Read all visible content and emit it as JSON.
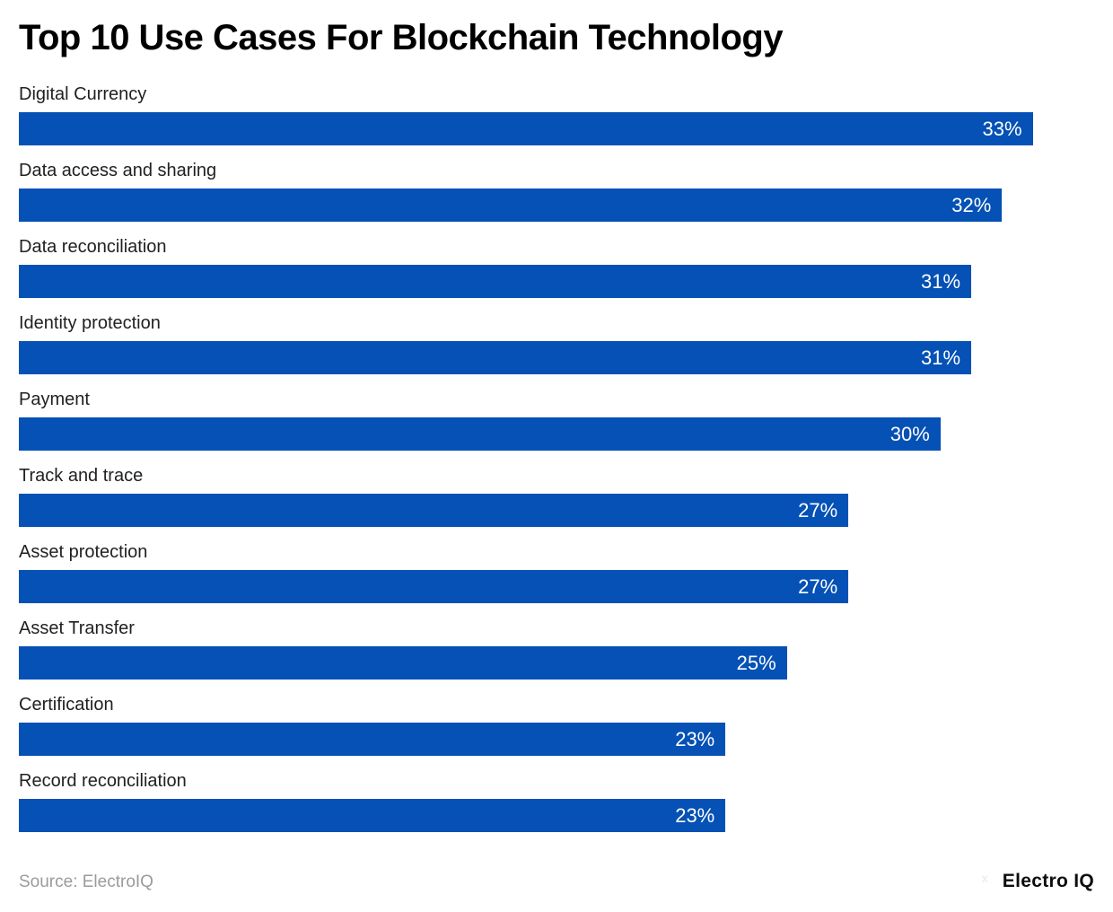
{
  "title": "Top 10 Use Cases For Blockchain Technology",
  "source_note": "Source: ElectroIQ",
  "brand": "Electro IQ",
  "colors": {
    "bar": "#0551b5",
    "title": "#000000",
    "category_label": "#212121",
    "value_label": "#ffffff",
    "source_text": "#9b9b9b",
    "background": "#ffffff"
  },
  "chart_data": {
    "type": "bar",
    "orientation": "horizontal",
    "title": "Top 10 Use Cases For Blockchain Technology",
    "xlabel": "",
    "ylabel": "",
    "xlim": [
      0,
      35
    ],
    "grid": false,
    "legend": false,
    "value_label_position": "inside-end",
    "categories": [
      "Digital Currency",
      "Data access and sharing",
      "Data reconciliation",
      "Identity protection",
      "Payment",
      "Track and trace",
      "Asset protection",
      "Asset Transfer",
      "Certification",
      "Record reconciliation"
    ],
    "values": [
      33,
      32,
      31,
      31,
      30,
      27,
      27,
      25,
      23,
      23
    ],
    "value_labels": [
      "33%",
      "32%",
      "31%",
      "31%",
      "30%",
      "27%",
      "27%",
      "25%",
      "23%",
      "23%"
    ]
  }
}
